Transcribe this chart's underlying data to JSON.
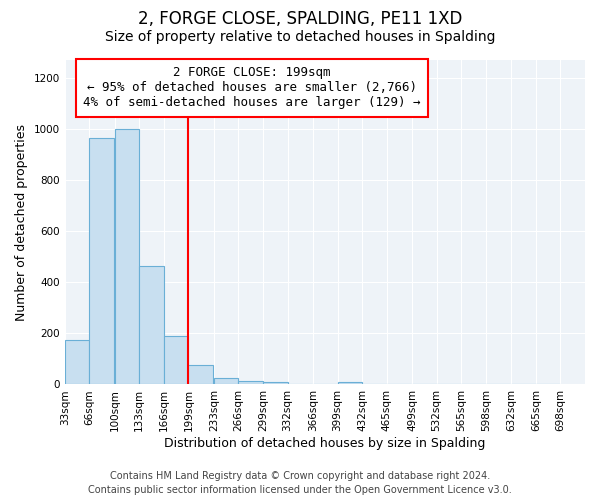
{
  "title": "2, FORGE CLOSE, SPALDING, PE11 1XD",
  "subtitle": "Size of property relative to detached houses in Spalding",
  "xlabel": "Distribution of detached houses by size in Spalding",
  "ylabel": "Number of detached properties",
  "bar_left_edges": [
    33,
    66,
    100,
    133,
    166,
    199,
    233,
    266,
    299,
    332,
    366,
    399,
    432,
    465,
    499,
    532,
    565,
    598,
    632,
    665
  ],
  "bar_heights": [
    175,
    965,
    1000,
    465,
    190,
    75,
    25,
    15,
    10,
    0,
    0,
    10,
    0,
    0,
    0,
    0,
    0,
    0,
    0,
    0
  ],
  "bin_width": 33,
  "bar_color": "#c8dff0",
  "bar_edgecolor": "#6aafd6",
  "red_line_x": 199,
  "ylim": [
    0,
    1270
  ],
  "yticks": [
    0,
    200,
    400,
    600,
    800,
    1000,
    1200
  ],
  "xlim": [
    33,
    731
  ],
  "xtick_positions": [
    33,
    66,
    100,
    133,
    166,
    199,
    233,
    266,
    299,
    332,
    366,
    399,
    432,
    465,
    499,
    532,
    565,
    598,
    632,
    665,
    698
  ],
  "xtick_labels": [
    "33sqm",
    "66sqm",
    "100sqm",
    "133sqm",
    "166sqm",
    "199sqm",
    "233sqm",
    "266sqm",
    "299sqm",
    "332sqm",
    "366sqm",
    "399sqm",
    "432sqm",
    "465sqm",
    "499sqm",
    "532sqm",
    "565sqm",
    "598sqm",
    "632sqm",
    "665sqm",
    "698sqm"
  ],
  "annotation_title": "2 FORGE CLOSE: 199sqm",
  "annotation_line1": "← 95% of detached houses are smaller (2,766)",
  "annotation_line2": "4% of semi-detached houses are larger (129) →",
  "footer1": "Contains HM Land Registry data © Crown copyright and database right 2024.",
  "footer2": "Contains public sector information licensed under the Open Government Licence v3.0.",
  "title_fontsize": 12,
  "subtitle_fontsize": 10,
  "axis_label_fontsize": 9,
  "tick_fontsize": 7.5,
  "annotation_fontsize": 9,
  "footer_fontsize": 7,
  "background_color": "#ffffff",
  "plot_bg_color": "#eef3f8",
  "grid_color": "#ffffff"
}
